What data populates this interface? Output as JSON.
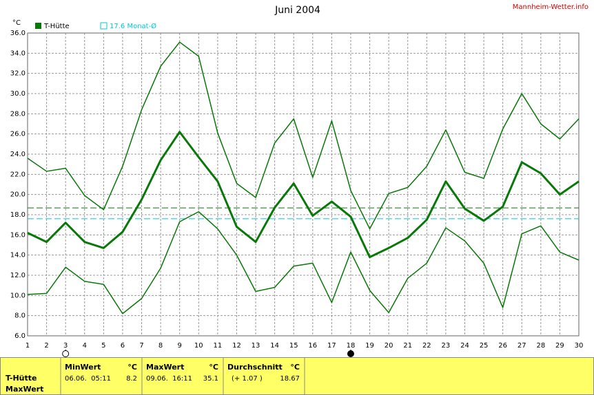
{
  "chart_data": {
    "type": "line",
    "title": "Juni 2004",
    "source": "Mannheim-Wetter.info",
    "y_unit": "°C",
    "x": [
      1,
      2,
      3,
      4,
      5,
      6,
      7,
      8,
      9,
      10,
      11,
      12,
      13,
      14,
      15,
      16,
      17,
      18,
      19,
      20,
      21,
      22,
      23,
      24,
      25,
      26,
      27,
      28,
      29,
      30
    ],
    "xlim": [
      1,
      30
    ],
    "xticks": [
      1,
      2,
      3,
      4,
      5,
      6,
      7,
      8,
      9,
      10,
      11,
      12,
      13,
      14,
      15,
      16,
      17,
      18,
      19,
      20,
      21,
      22,
      23,
      24,
      25,
      26,
      27,
      28,
      29,
      30
    ],
    "ylim": [
      6,
      36
    ],
    "yticks": [
      {
        "value": 6,
        "label": "6.0"
      },
      {
        "value": 8,
        "label": "8.0"
      },
      {
        "value": 10,
        "label": "10.0"
      },
      {
        "value": 12,
        "label": "12.0"
      },
      {
        "value": 14,
        "label": "14.0"
      },
      {
        "value": 16,
        "label": "16.0"
      },
      {
        "value": 18,
        "label": "18.0"
      },
      {
        "value": 20,
        "label": "20.0"
      },
      {
        "value": 22,
        "label": "22.0"
      },
      {
        "value": 24,
        "label": "24.0"
      },
      {
        "value": 26,
        "label": "26.0"
      },
      {
        "value": 28,
        "label": "28.0"
      },
      {
        "value": 30,
        "label": "30.0"
      },
      {
        "value": 32,
        "label": "32.0"
      },
      {
        "value": 34,
        "label": "34.0"
      },
      {
        "value": 36,
        "label": "36.0"
      }
    ],
    "grid": true,
    "series": [
      {
        "name": "T-Hütte",
        "color": "#087808",
        "width": 3,
        "values": [
          16.2,
          15.3,
          17.2,
          15.3,
          14.7,
          16.3,
          19.5,
          23.4,
          26.2,
          23.7,
          21.3,
          16.8,
          15.3,
          18.7,
          21.1,
          17.9,
          19.3,
          17.8,
          13.8,
          14.7,
          15.7,
          17.5,
          21.3,
          18.6,
          17.4,
          18.8,
          23.2,
          22.1,
          20.0,
          21.3
        ]
      },
      {
        "color": "#087808",
        "width": 1.5,
        "values": [
          23.6,
          22.3,
          22.6,
          19.9,
          18.5,
          22.8,
          28.4,
          32.7,
          35.1,
          33.7,
          26.1,
          21.1,
          19.7,
          25.1,
          27.5,
          21.7,
          27.3,
          20.4,
          16.6,
          20.1,
          20.7,
          22.8,
          26.4,
          22.2,
          21.6,
          26.5,
          30.0,
          27.0,
          25.5,
          27.5
        ]
      },
      {
        "color": "#087808",
        "width": 1.5,
        "values": [
          10.1,
          10.2,
          12.8,
          11.4,
          11.1,
          8.2,
          9.7,
          12.7,
          17.3,
          18.3,
          16.6,
          14.0,
          10.4,
          10.8,
          12.9,
          13.2,
          9.3,
          14.3,
          10.5,
          8.3,
          11.7,
          13.2,
          16.7,
          15.4,
          13.2,
          8.8,
          16.1,
          16.9,
          14.3,
          13.5
        ]
      }
    ],
    "reference_lines": [
      {
        "value": 18.67,
        "color": "#087808"
      },
      {
        "value": 17.6,
        "label": "17.6 Monat-Ø",
        "color": "#00c8d8"
      }
    ],
    "moon_markers": [
      {
        "x": 3,
        "filled": false
      },
      {
        "x": 18,
        "filled": true
      }
    ]
  },
  "table": {
    "row_labels": [
      "T-Hütte",
      "MaxWert"
    ],
    "columns": [
      {
        "header": "MinWert",
        "unit": "°C",
        "when": "06.06.  05:11",
        "value": "8.2"
      },
      {
        "header": "MaxWert",
        "unit": "°C",
        "when": "09.06.  16:11",
        "value": "35.1"
      },
      {
        "header": "Durchschnitt",
        "unit": "°C",
        "when": "(+ 1.07 )",
        "value": "18.67"
      }
    ]
  }
}
